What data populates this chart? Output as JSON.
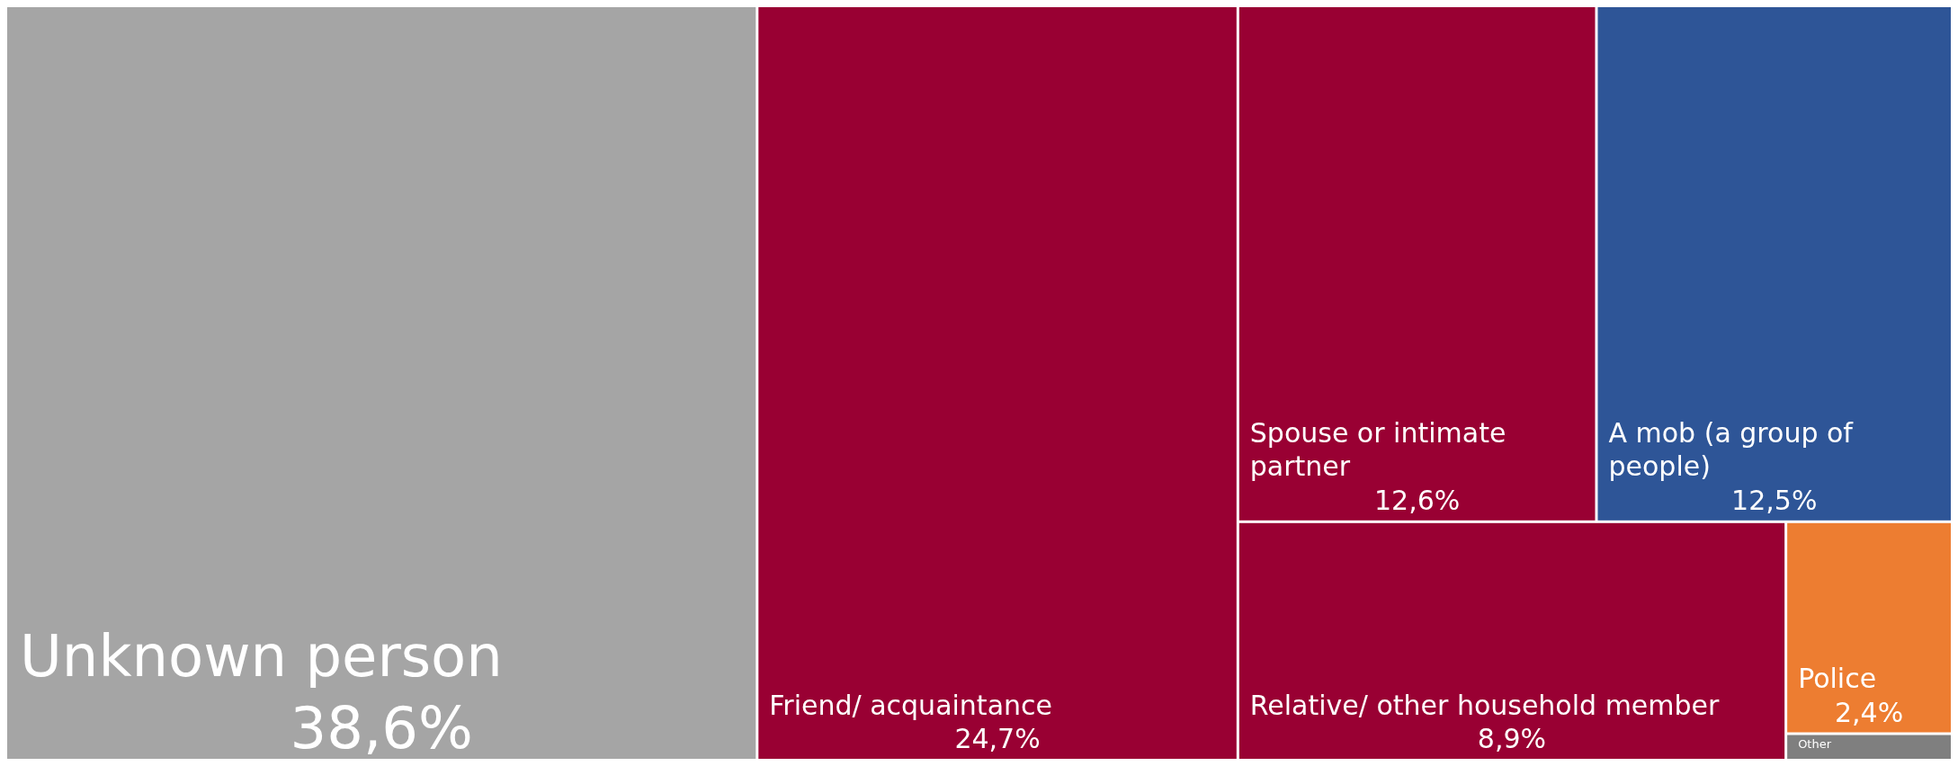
{
  "chart_data": {
    "type": "other",
    "categories": [
      "Unknown person",
      "Friend/ acquaintance",
      "Spouse or intimate partner",
      "A mob (a group of people)",
      "Relative/ other household member",
      "Police",
      "Other"
    ],
    "values": [
      38.6,
      24.7,
      12.6,
      12.5,
      8.9,
      2.4,
      null
    ],
    "value_labels": [
      "38,6%",
      "24,7%",
      "12,6%",
      "12,5%",
      "8,9%",
      "2,4%",
      null
    ],
    "colors": [
      "#a5a5a5",
      "#990033",
      "#990033",
      "#2e5597",
      "#990033",
      "#ed7d31",
      "#7f7f7f"
    ]
  }
}
